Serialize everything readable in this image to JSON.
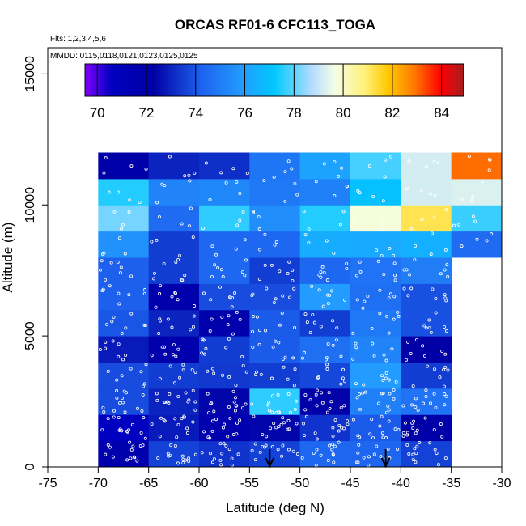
{
  "chart_data": {
    "type": "heatmap",
    "title": "ORCAS RF01-6 CFC113_TOGA",
    "xlabel": "Latitude (deg N)",
    "ylabel": "Altitude (m)",
    "flights_label": "Flts: 1,2,3,4,5,6",
    "dates_label": "MMDD: 0115,0118,0121,0123,0125,0125",
    "xlim": [
      -75,
      -30
    ],
    "ylim": [
      0,
      16000
    ],
    "xticks": [
      -75,
      -70,
      -65,
      -60,
      -55,
      -50,
      -45,
      -40,
      -35,
      -30
    ],
    "xtick_labels": [
      "-75",
      "-70",
      "-65",
      "-60",
      "-55",
      "-50",
      "-45",
      "-40",
      "-35",
      "-30"
    ],
    "yticks": [
      0,
      5000,
      10000,
      15000
    ],
    "ytick_labels": [
      "0",
      "5000",
      "10000",
      "15000"
    ],
    "colorbar": {
      "range": [
        69.5,
        84.9
      ],
      "ticks": [
        70,
        72,
        74,
        76,
        78,
        80,
        82,
        84
      ],
      "tick_labels": [
        "70",
        "72",
        "74",
        "76",
        "78",
        "80",
        "82",
        "84"
      ]
    },
    "lat_bins": [
      -70,
      -65,
      -60,
      -55,
      -50,
      -45,
      -40,
      -35,
      -30
    ],
    "alt_bin_size": 1000,
    "grid_values": [
      [
        71.8,
        73.6,
        73.3,
        73.6,
        74.4,
        74.3,
        73.6,
        null
      ],
      [
        70.6,
        72.8,
        71.7,
        72.4,
        73.3,
        74.1,
        72.1,
        null
      ],
      [
        73.8,
        73.0,
        72.4,
        77.6,
        72.3,
        75.1,
        74.7,
        null
      ],
      [
        73.8,
        73.5,
        73.4,
        73.5,
        73.7,
        75.9,
        73.5,
        null
      ],
      [
        72.8,
        71.8,
        73.5,
        74.1,
        74.6,
        75.2,
        72.2,
        null
      ],
      [
        74.0,
        73.0,
        71.8,
        74.1,
        73.5,
        74.9,
        73.9,
        null
      ],
      [
        74.2,
        71.8,
        73.8,
        73.8,
        75.9,
        74.6,
        73.9,
        null
      ],
      [
        74.2,
        73.5,
        74.4,
        73.5,
        74.4,
        74.7,
        75.0,
        null
      ],
      [
        75.6,
        73.5,
        74.4,
        74.4,
        76.4,
        76.3,
        76.5,
        74.5
      ],
      [
        78.2,
        74.5,
        77.6,
        75.5,
        77.5,
        79.8,
        81.2,
        77.7
      ],
      [
        77.5,
        75.2,
        75.3,
        74.9,
        75.1,
        77.0,
        79.2,
        79.3
      ],
      [
        72.0,
        73.0,
        73.2,
        74.8,
        76.1,
        77.8,
        79.2,
        83.0
      ]
    ],
    "arrows_lat": [
      -53.0,
      -41.5
    ]
  }
}
